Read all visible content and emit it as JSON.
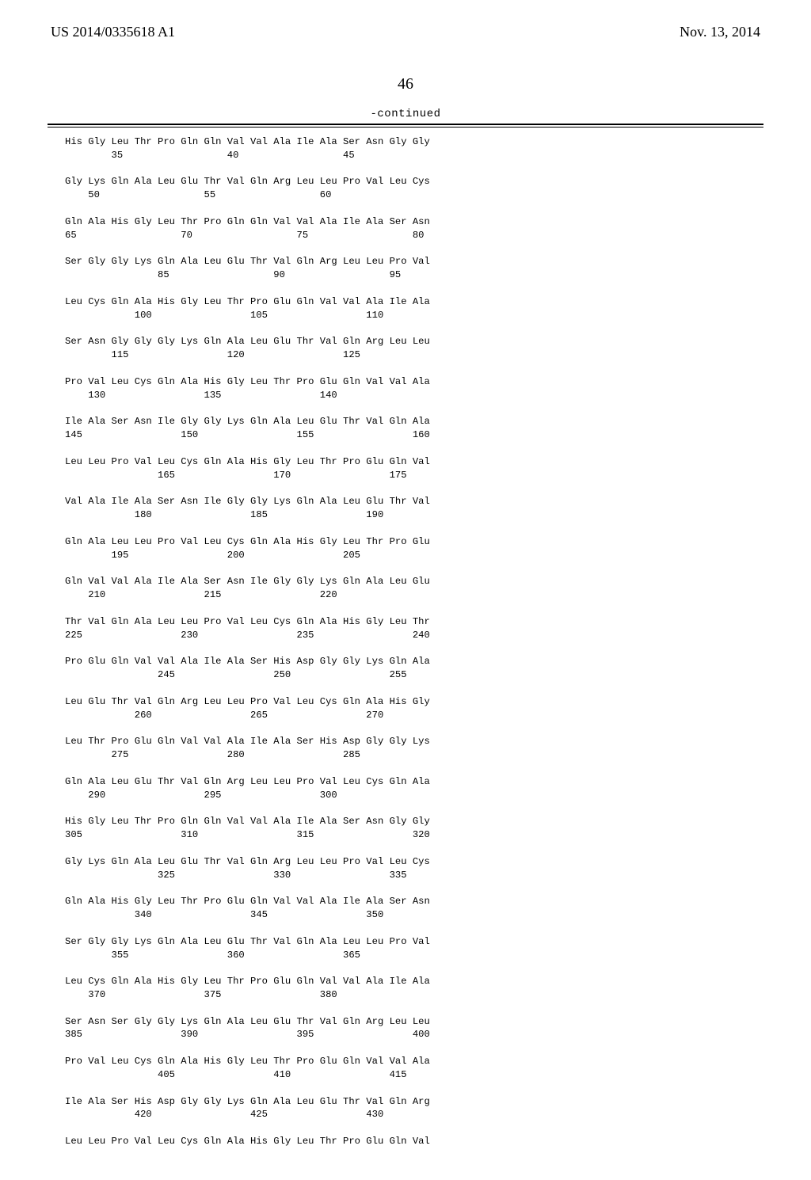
{
  "header": {
    "left": "US 2014/0335618 A1",
    "right": "Nov. 13, 2014"
  },
  "pagenum": "46",
  "continued": "-continued",
  "sequence_lines": [
    "His Gly Leu Thr Pro Gln Gln Val Val Ala Ile Ala Ser Asn Gly Gly",
    "        35                  40                  45",
    "",
    "Gly Lys Gln Ala Leu Glu Thr Val Gln Arg Leu Leu Pro Val Leu Cys",
    "    50                  55                  60",
    "",
    "Gln Ala His Gly Leu Thr Pro Gln Gln Val Val Ala Ile Ala Ser Asn",
    "65                  70                  75                  80",
    "",
    "Ser Gly Gly Lys Gln Ala Leu Glu Thr Val Gln Arg Leu Leu Pro Val",
    "                85                  90                  95",
    "",
    "Leu Cys Gln Ala His Gly Leu Thr Pro Glu Gln Val Val Ala Ile Ala",
    "            100                 105                 110",
    "",
    "Ser Asn Gly Gly Gly Lys Gln Ala Leu Glu Thr Val Gln Arg Leu Leu",
    "        115                 120                 125",
    "",
    "Pro Val Leu Cys Gln Ala His Gly Leu Thr Pro Glu Gln Val Val Ala",
    "    130                 135                 140",
    "",
    "Ile Ala Ser Asn Ile Gly Gly Lys Gln Ala Leu Glu Thr Val Gln Ala",
    "145                 150                 155                 160",
    "",
    "Leu Leu Pro Val Leu Cys Gln Ala His Gly Leu Thr Pro Glu Gln Val",
    "                165                 170                 175",
    "",
    "Val Ala Ile Ala Ser Asn Ile Gly Gly Lys Gln Ala Leu Glu Thr Val",
    "            180                 185                 190",
    "",
    "Gln Ala Leu Leu Pro Val Leu Cys Gln Ala His Gly Leu Thr Pro Glu",
    "        195                 200                 205",
    "",
    "Gln Val Val Ala Ile Ala Ser Asn Ile Gly Gly Lys Gln Ala Leu Glu",
    "    210                 215                 220",
    "",
    "Thr Val Gln Ala Leu Leu Pro Val Leu Cys Gln Ala His Gly Leu Thr",
    "225                 230                 235                 240",
    "",
    "Pro Glu Gln Val Val Ala Ile Ala Ser His Asp Gly Gly Lys Gln Ala",
    "                245                 250                 255",
    "",
    "Leu Glu Thr Val Gln Arg Leu Leu Pro Val Leu Cys Gln Ala His Gly",
    "            260                 265                 270",
    "",
    "Leu Thr Pro Glu Gln Val Val Ala Ile Ala Ser His Asp Gly Gly Lys",
    "        275                 280                 285",
    "",
    "Gln Ala Leu Glu Thr Val Gln Arg Leu Leu Pro Val Leu Cys Gln Ala",
    "    290                 295                 300",
    "",
    "His Gly Leu Thr Pro Gln Gln Val Val Ala Ile Ala Ser Asn Gly Gly",
    "305                 310                 315                 320",
    "",
    "Gly Lys Gln Ala Leu Glu Thr Val Gln Arg Leu Leu Pro Val Leu Cys",
    "                325                 330                 335",
    "",
    "Gln Ala His Gly Leu Thr Pro Glu Gln Val Val Ala Ile Ala Ser Asn",
    "            340                 345                 350",
    "",
    "Ser Gly Gly Lys Gln Ala Leu Glu Thr Val Gln Ala Leu Leu Pro Val",
    "        355                 360                 365",
    "",
    "Leu Cys Gln Ala His Gly Leu Thr Pro Glu Gln Val Val Ala Ile Ala",
    "    370                 375                 380",
    "",
    "Ser Asn Ser Gly Gly Lys Gln Ala Leu Glu Thr Val Gln Arg Leu Leu",
    "385                 390                 395                 400",
    "",
    "Pro Val Leu Cys Gln Ala His Gly Leu Thr Pro Glu Gln Val Val Ala",
    "                405                 410                 415",
    "",
    "Ile Ala Ser His Asp Gly Gly Lys Gln Ala Leu Glu Thr Val Gln Arg",
    "            420                 425                 430",
    "",
    "Leu Leu Pro Val Leu Cys Gln Ala His Gly Leu Thr Pro Glu Gln Val"
  ]
}
